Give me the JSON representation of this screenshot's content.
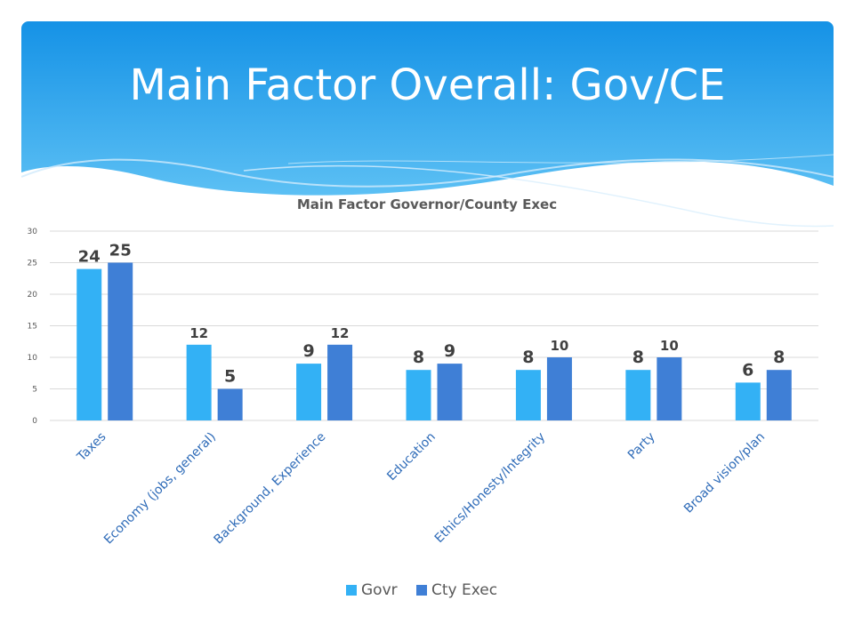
{
  "slide": {
    "title": "Main Factor Overall: Gov/CE",
    "colors": {
      "header_top": "#1592e6",
      "header_bottom": "#5cc0f4",
      "title_text": "#ffffff"
    }
  },
  "chart_data": {
    "type": "bar",
    "title": "Main Factor Governor/County Exec",
    "xlabel": "",
    "ylabel": "",
    "ylim": [
      0,
      30
    ],
    "yticks": [
      0,
      5,
      10,
      15,
      20,
      25,
      30
    ],
    "grid": true,
    "legend_position": "bottom",
    "categories": [
      "Taxes",
      "Economy (jobs, general)",
      "Background, Experience",
      "Education",
      "Ethics/Honesty/Integrity",
      "Party",
      "Broad vision/plan"
    ],
    "series": [
      {
        "name": "Govr",
        "color": "#33b1f5",
        "values": [
          24,
          12,
          9,
          8,
          8,
          8,
          6
        ]
      },
      {
        "name": "Cty Exec",
        "color": "#3f7fd6",
        "values": [
          25,
          5,
          12,
          9,
          10,
          10,
          8
        ]
      }
    ]
  }
}
